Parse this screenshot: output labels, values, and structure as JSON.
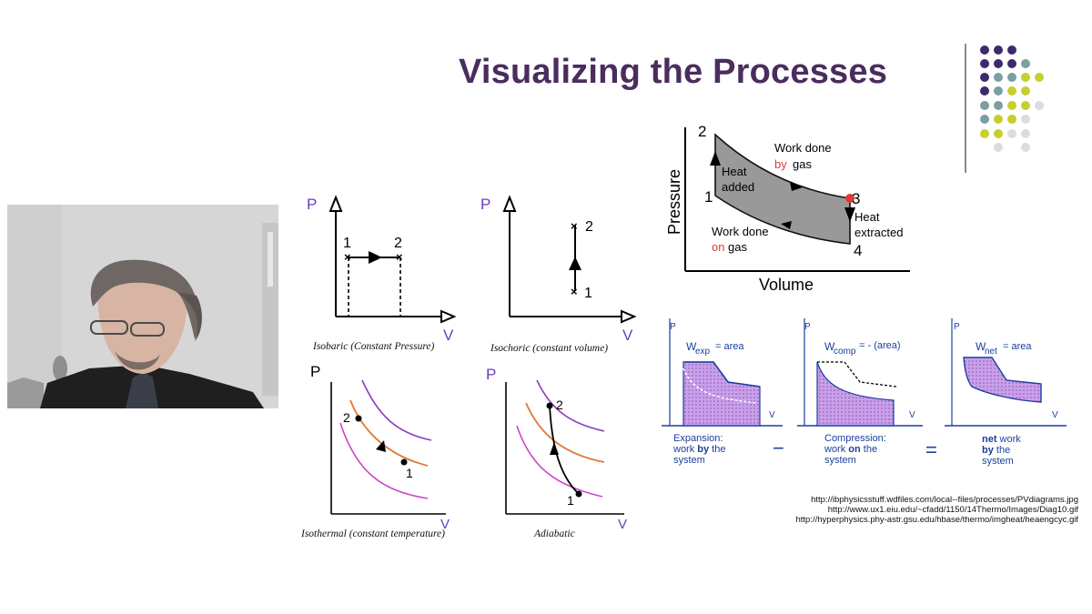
{
  "slide": {
    "title": "Visualizing the Processes",
    "colors": {
      "title": "#4a2d5e",
      "accent_purple": "#7b3fa8",
      "axis_label": "#6a3fc0"
    }
  },
  "diagrams": {
    "isobaric": {
      "caption": "Isobaric (Constant Pressure)",
      "p_label": "P",
      "v_label": "V",
      "pt1": "1",
      "pt2": "2"
    },
    "isochoric": {
      "caption": "Isochoric (constant volume)",
      "p_label": "P",
      "v_label": "V",
      "pt1": "1",
      "pt2": "2"
    },
    "isothermal": {
      "caption": "Isothermal (constant temperature)",
      "p_label": "P",
      "v_label": "V",
      "pt1": "1",
      "pt2": "2"
    },
    "adiabatic": {
      "caption": "Adiabatic",
      "p_label": "P",
      "v_label": "V",
      "pt1": "1",
      "pt2": "2"
    }
  },
  "cycle": {
    "y_label": "Pressure",
    "x_label": "Volume",
    "points": [
      "1",
      "2",
      "3",
      "4"
    ],
    "heat_added": [
      "Heat",
      "added"
    ],
    "work_by": [
      "Work done",
      "by",
      "gas"
    ],
    "heat_extracted": [
      "Heat",
      "extracted"
    ],
    "work_on": [
      "Work done",
      "on",
      "gas"
    ]
  },
  "work_panels": {
    "expansion": {
      "p": "P",
      "v": "V",
      "w_main": "W",
      "w_sub": "exp",
      "w_rest": "= area",
      "cap1": "Expansion:",
      "cap2a": "work ",
      "cap2b": "by",
      "cap2c": " the",
      "cap3": "system"
    },
    "compression": {
      "p": "P",
      "v": "V",
      "w_main": "W",
      "w_sub": "comp",
      "w_rest": "= - (area)",
      "cap1": "Compression:",
      "cap2a": "work ",
      "cap2b": "on",
      "cap2c": " the",
      "cap3": "system"
    },
    "net": {
      "p": "P",
      "v": "V",
      "w_main": "W",
      "w_sub": "net",
      "w_rest": "= area",
      "cap1a": "net",
      "cap1b": " work",
      "cap2a": "by",
      "cap2b": " the",
      "cap3": "system"
    },
    "minus": "−",
    "equals": "="
  },
  "references": [
    "http://ibphysicsstuff.wdfiles.com/local--files/processes/PVdiagrams.jpg",
    "http://www.ux1.eiu.edu/~cfadd/1150/14Thermo/Images/Diag10.gif",
    "http://hyperphysics.phy-astr.gsu.edu/hbase/thermo/imgheat/heaengcyc.gif"
  ]
}
